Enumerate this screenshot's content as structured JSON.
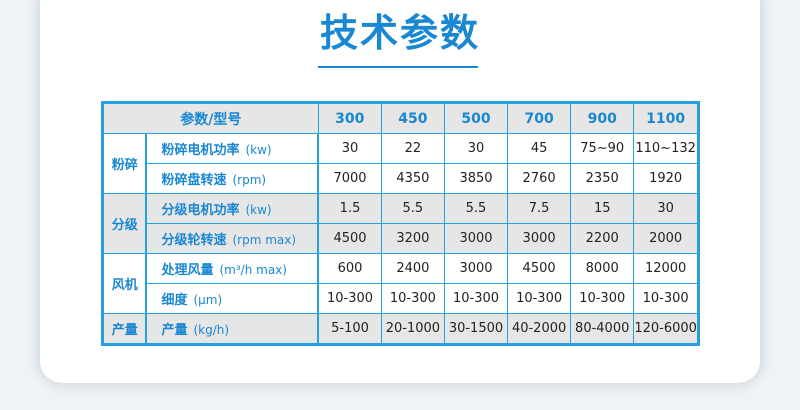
{
  "title": "技术参数",
  "table": {
    "header_label": "参数/型号",
    "models": [
      "300",
      "450",
      "500",
      "700",
      "900",
      "1100"
    ],
    "rows": [
      {
        "group": "粉碎",
        "label": "粉碎电机功率",
        "unit": "(kw)",
        "values": [
          "30",
          "22",
          "30",
          "45",
          "75~90",
          "110~132"
        ]
      },
      {
        "label": "粉碎盘转速",
        "unit": "(rpm)",
        "values": [
          "7000",
          "4350",
          "3850",
          "2760",
          "2350",
          "1920"
        ]
      },
      {
        "group": "分级",
        "label": "分级电机功率",
        "unit": "(kw)",
        "values": [
          "1.5",
          "5.5",
          "5.5",
          "7.5",
          "15",
          "30"
        ]
      },
      {
        "label": "分级轮转速",
        "unit": "(rpm max)",
        "values": [
          "4500",
          "3200",
          "3000",
          "3000",
          "2200",
          "2000"
        ]
      },
      {
        "group": "风机",
        "label": "处理风量",
        "unit": "(m³/h max)",
        "values": [
          "600",
          "2400",
          "3000",
          "4500",
          "8000",
          "12000"
        ]
      },
      {
        "label": "细度",
        "unit": "(μm)",
        "values": [
          "10-300",
          "10-300",
          "10-300",
          "10-300",
          "10-300",
          "10-300"
        ]
      },
      {
        "group": "产量",
        "label": "产量",
        "unit": "(kg/h)",
        "values": [
          "5-100",
          "20-1000",
          "30-1500",
          "40-2000",
          "80-4000",
          "120-6000"
        ]
      }
    ]
  }
}
